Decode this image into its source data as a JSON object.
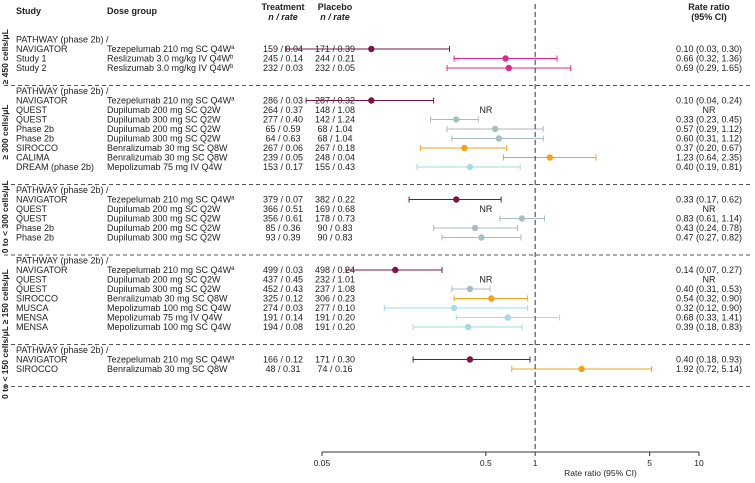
{
  "chart_data": {
    "type": "forest",
    "title": "",
    "xlabel": "Rate ratio (95% CI)",
    "xscale": "log",
    "xlim": [
      0.05,
      10
    ],
    "xticks": [
      0.05,
      0.5,
      1,
      5,
      10
    ],
    "xtick_labels": [
      "0.05",
      "0.5",
      "1",
      "5",
      "10"
    ],
    "reference_line": 1,
    "headers": {
      "study": "Study",
      "dose": "Dose group",
      "treatment": "Treatment",
      "treatment_sub": "n / rate",
      "placebo": "Placebo",
      "placebo_sub": "n / rate",
      "rr": "Rate ratio",
      "rr_sub": "(95% CI)"
    },
    "drug_colors": {
      "Tezepelumab": "#7a1545",
      "Reslizumab": "#e0288a",
      "Dupilumab": "#a9bec0",
      "Benralizumab": "#f2a31c",
      "Mepolizumab": "#a6dbe6"
    },
    "groups": [
      {
        "label": "≥ 450 cells/μL",
        "rows": [
          {
            "study": "PATHWAY (phase 2b) /",
            "study2": "NAVIGATOR",
            "dose": "Tezepelumab 210 mg SC Q4W",
            "sup": "a",
            "drug": "Tezepelumab",
            "treatment": "159 / 0.04",
            "placebo": "171 / 0.39",
            "rr": 0.1,
            "lo": 0.03,
            "hi": 0.3,
            "rr_text": "0.10 (0.03, 0.30)",
            "nr": false
          },
          {
            "study": "Study 1",
            "dose": "Reslizumab 3.0 mg/kg IV Q4W",
            "sup": "b",
            "drug": "Reslizumab",
            "treatment": "245 / 0.14",
            "placebo": "244 / 0.21",
            "rr": 0.66,
            "lo": 0.32,
            "hi": 1.36,
            "rr_text": "0.66 (0.32, 1.36)",
            "nr": false
          },
          {
            "study": "Study 2",
            "dose": "Reslizumab 3.0 mg/kg IV Q4W",
            "sup": "b",
            "drug": "Reslizumab",
            "treatment": "232 / 0.03",
            "placebo": "232 / 0.05",
            "rr": 0.69,
            "lo": 0.29,
            "hi": 1.65,
            "rr_text": "0.69 (0.29, 1.65)",
            "nr": false
          }
        ]
      },
      {
        "label": "≥ 300 cells/μL",
        "rows": [
          {
            "study": "PATHWAY (phase 2b) /",
            "study2": "NAVIGATOR",
            "dose": "Tezepelumab 210 mg SC Q4W",
            "sup": "a",
            "drug": "Tezepelumab",
            "treatment": "286 / 0.03",
            "placebo": "287 / 0.32",
            "rr": 0.1,
            "lo": 0.04,
            "hi": 0.24,
            "rr_text": "0.10 (0.04, 0.24)",
            "nr": false
          },
          {
            "study": "QUEST",
            "dose": "Dupilumab 200 mg SC Q2W",
            "sup": "",
            "drug": "Dupilumab",
            "treatment": "264 / 0.37",
            "placebo": "148 / 1.08",
            "rr": null,
            "lo": null,
            "hi": null,
            "rr_text": "NR",
            "nr": true
          },
          {
            "study": "QUEST",
            "dose": "Dupilumab 300 mg SC Q2W",
            "sup": "",
            "drug": "Dupilumab",
            "treatment": "277 / 0.40",
            "placebo": "142 / 1.24",
            "rr": 0.33,
            "lo": 0.23,
            "hi": 0.45,
            "rr_text": "0.33 (0.23, 0.45)",
            "nr": false
          },
          {
            "study": "Phase 2b",
            "dose": "Dupilumab 200 mg SC Q2W",
            "sup": "",
            "drug": "Dupilumab",
            "treatment": "65 / 0.59",
            "placebo": "68 / 1.04",
            "rr": 0.57,
            "lo": 0.29,
            "hi": 1.12,
            "rr_text": "0.57 (0.29, 1.12)",
            "nr": false
          },
          {
            "study": "Phase 2b",
            "dose": "Dupilumab 300 mg SC Q2W",
            "sup": "",
            "drug": "Dupilumab",
            "treatment": "64 / 0.63",
            "placebo": "68 / 1.04",
            "rr": 0.6,
            "lo": 0.31,
            "hi": 1.12,
            "rr_text": "0.60 (0.31, 1.12)",
            "nr": false
          },
          {
            "study": "SIROCCO",
            "dose": "Benralizumab 30 mg SC Q8W",
            "sup": "",
            "drug": "Benralizumab",
            "treatment": "267 / 0.06",
            "placebo": "267 / 0.18",
            "rr": 0.37,
            "lo": 0.2,
            "hi": 0.67,
            "rr_text": "0.37 (0.20, 0.67)",
            "nr": false
          },
          {
            "study": "CALIMA",
            "dose": "Benralizumab 30 mg SC Q8W",
            "sup": "",
            "drug": "Benralizumab",
            "treatment": "239 / 0.05",
            "placebo": "248 / 0.04",
            "rr": 1.23,
            "lo": 0.64,
            "hi": 2.35,
            "rr_text": "1.23 (0.64, 2.35)",
            "nr": false
          },
          {
            "study": "DREAM (phase 2b)",
            "dose": "Mepolizumab 75 mg IV Q4W",
            "sup": "",
            "drug": "Mepolizumab",
            "treatment": "153 / 0.17",
            "placebo": "155 / 0.43",
            "rr": 0.4,
            "lo": 0.19,
            "hi": 0.81,
            "rr_text": "0.40 (0.19, 0.81)",
            "nr": false
          }
        ]
      },
      {
        "label": "0 to < 300 cells/μL",
        "rows": [
          {
            "study": "PATHWAY (phase 2b) /",
            "study2": "NAVIGATOR",
            "dose": "Tezepelumab 210 mg SC Q4W",
            "sup": "a",
            "drug": "Tezepelumab",
            "treatment": "379 / 0.07",
            "placebo": "382 / 0.22",
            "rr": 0.33,
            "lo": 0.17,
            "hi": 0.62,
            "rr_text": "0.33 (0.17, 0.62)",
            "nr": false
          },
          {
            "study": "QUEST",
            "dose": "Dupilumab 200 mg SC Q2W",
            "sup": "",
            "drug": "Dupilumab",
            "treatment": "366 / 0.51",
            "placebo": "169 / 0.68",
            "rr": null,
            "lo": null,
            "hi": null,
            "rr_text": "NR",
            "nr": true
          },
          {
            "study": "QUEST",
            "dose": "Dupilumab 300 mg SC Q2W",
            "sup": "",
            "drug": "Dupilumab",
            "treatment": "356 / 0.61",
            "placebo": "178 / 0.73",
            "rr": 0.83,
            "lo": 0.61,
            "hi": 1.14,
            "rr_text": "0.83 (0.61, 1.14)",
            "nr": false
          },
          {
            "study": "Phase 2b",
            "dose": "Dupilumab 200 mg SC Q2W",
            "sup": "",
            "drug": "Dupilumab",
            "treatment": "85 / 0.36",
            "placebo": "90 / 0.83",
            "rr": 0.43,
            "lo": 0.24,
            "hi": 0.78,
            "rr_text": "0.43 (0.24, 0.78)",
            "nr": false
          },
          {
            "study": "Phase 2b",
            "dose": "Dupilumab 300 mg SC Q2W",
            "sup": "",
            "drug": "Dupilumab",
            "treatment": "93 / 0.39",
            "placebo": "90 / 0.83",
            "rr": 0.47,
            "lo": 0.27,
            "hi": 0.82,
            "rr_text": "0.47 (0.27, 0.82)",
            "nr": false
          }
        ]
      },
      {
        "label": "≥ 150 cells/μL",
        "rows": [
          {
            "study": "PATHWAY (phase 2b) /",
            "study2": "NAVIGATOR",
            "dose": "Tezepelumab 210 mg SC Q4W",
            "sup": "a",
            "drug": "Tezepelumab",
            "treatment": "499 / 0.03",
            "placebo": "498 / 0.24",
            "rr": 0.14,
            "lo": 0.07,
            "hi": 0.27,
            "rr_text": "0.14 (0.07, 0.27)",
            "nr": false
          },
          {
            "study": "QUEST",
            "dose": "Dupilumab 200 mg SC Q2W",
            "sup": "",
            "drug": "Dupilumab",
            "treatment": "437 / 0.45",
            "placebo": "232 / 1.01",
            "rr": null,
            "lo": null,
            "hi": null,
            "rr_text": "NR",
            "nr": true
          },
          {
            "study": "QUEST",
            "dose": "Dupilumab 300 mg SC Q2W",
            "sup": "",
            "drug": "Dupilumab",
            "treatment": "452 / 0.43",
            "placebo": "237 / 1.08",
            "rr": 0.4,
            "lo": 0.31,
            "hi": 0.53,
            "rr_text": "0.40 (0.31, 0.53)",
            "nr": false
          },
          {
            "study": "SIROCCO",
            "dose": "Benralizumab 30 mg SC Q8W",
            "sup": "",
            "drug": "Benralizumab",
            "treatment": "325 / 0.12",
            "placebo": "306 / 0.23",
            "rr": 0.54,
            "lo": 0.32,
            "hi": 0.9,
            "rr_text": "0.54 (0.32, 0.90)",
            "nr": false
          },
          {
            "study": "MUSCA",
            "dose": "Mepolizumab 100 mg SC Q4W",
            "sup": "",
            "drug": "Mepolizumab",
            "treatment": "274 / 0.03",
            "placebo": "277 / 0.10",
            "rr": 0.32,
            "lo": 0.12,
            "hi": 0.9,
            "rr_text": "0.32 (0.12, 0.90)",
            "nr": false
          },
          {
            "study": "MENSA",
            "dose": "Mepolizumab 75 mg IV Q4W",
            "sup": "",
            "drug": "Mepolizumab",
            "treatment": "191 / 0.14",
            "placebo": "191 / 0.20",
            "rr": 0.68,
            "lo": 0.33,
            "hi": 1.41,
            "rr_text": "0.68 (0.33, 1.41)",
            "nr": false
          },
          {
            "study": "MENSA",
            "dose": "Mepolizumab 100 mg SC Q4W",
            "sup": "",
            "drug": "Mepolizumab",
            "treatment": "194 / 0.08",
            "placebo": "191 / 0.20",
            "rr": 0.39,
            "lo": 0.18,
            "hi": 0.83,
            "rr_text": "0.39 (0.18, 0.83)",
            "nr": false
          }
        ]
      },
      {
        "label": "0 to < 150 cells/μL",
        "rows": [
          {
            "study": "PATHWAY (phase 2b) /",
            "study2": "NAVIGATOR",
            "dose": "Tezepelumab 210 mg SC Q4W",
            "sup": "a",
            "drug": "Tezepelumab",
            "treatment": "166 / 0.12",
            "placebo": "171 / 0.30",
            "rr": 0.4,
            "lo": 0.18,
            "hi": 0.93,
            "rr_text": "0.40 (0.18, 0.93)",
            "nr": false
          },
          {
            "study": "SIROCCO",
            "dose": "Benralizumab 30 mg SC Q8W",
            "sup": "",
            "drug": "Benralizumab",
            "treatment": "48 / 0.31",
            "placebo": "74 / 0.16",
            "rr": 1.92,
            "lo": 0.72,
            "hi": 5.14,
            "rr_text": "1.92 (0.72, 5.14)",
            "nr": false
          }
        ]
      }
    ]
  }
}
